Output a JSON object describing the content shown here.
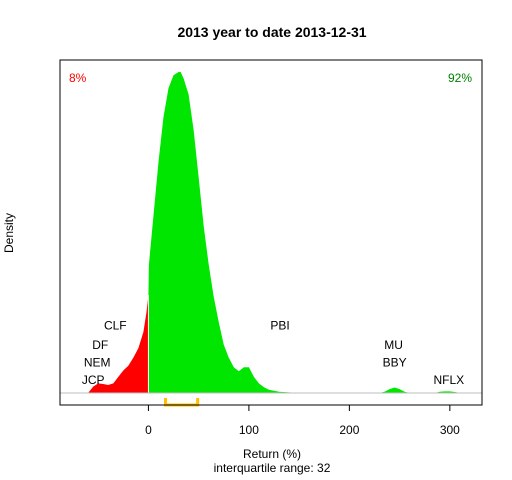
{
  "chart_data": {
    "type": "area",
    "title": "2013  year to date 2013-12-31",
    "xlabel": "Return (%)",
    "ylabel": "Density",
    "subtitle": "interquartile range: 32",
    "xlim": [
      -88,
      332
    ],
    "x_ticks": [
      0,
      100,
      200,
      300
    ],
    "x_tick_labels": [
      "0",
      "100",
      "200",
      "300"
    ],
    "ylim": [
      0,
      1
    ],
    "grid": false,
    "split_at": 0,
    "negative_share_label": "8%",
    "positive_share_label": "92%",
    "colors": {
      "negative": "#ff0000",
      "positive": "#00e600",
      "iqr": "#ffc000",
      "baseline": "#bebebe"
    },
    "interquartile_range": [
      17,
      49
    ],
    "density": {
      "x": [
        -60,
        -55,
        -50,
        -45,
        -40,
        -35,
        -30,
        -25,
        -20,
        -15,
        -10,
        -5,
        -2,
        0,
        0.5,
        5,
        10,
        15,
        20,
        25,
        30,
        32,
        35,
        40,
        45,
        50,
        55,
        60,
        65,
        70,
        75,
        80,
        85,
        90,
        95,
        100,
        105,
        110,
        115,
        120,
        130,
        140,
        150,
        230,
        235,
        240,
        245,
        250,
        255,
        260,
        285,
        290,
        295,
        300,
        305,
        310
      ],
      "y": [
        0,
        0.02,
        0.03,
        0.028,
        0.025,
        0.03,
        0.05,
        0.07,
        0.085,
        0.11,
        0.14,
        0.19,
        0.25,
        0.305,
        0.4,
        0.55,
        0.72,
        0.86,
        0.95,
        0.99,
        1.0,
        1.0,
        0.98,
        0.93,
        0.82,
        0.67,
        0.52,
        0.4,
        0.3,
        0.22,
        0.15,
        0.11,
        0.08,
        0.068,
        0.08,
        0.08,
        0.05,
        0.03,
        0.018,
        0.01,
        0.004,
        0.002,
        0,
        0,
        0.004,
        0.012,
        0.017,
        0.012,
        0.004,
        0,
        0,
        0.004,
        0.005,
        0.005,
        0.003,
        0
      ]
    },
    "annotations": [
      {
        "text": "CLF",
        "x": -33,
        "y": 0.21
      },
      {
        "text": "DF",
        "x": -48,
        "y": 0.15
      },
      {
        "text": "NEM",
        "x": -51,
        "y": 0.095
      },
      {
        "text": "JCP",
        "x": -55,
        "y": 0.04
      },
      {
        "text": "PBI",
        "x": 131,
        "y": 0.21
      },
      {
        "text": "MU",
        "x": 244,
        "y": 0.15
      },
      {
        "text": "BBY",
        "x": 245,
        "y": 0.095
      },
      {
        "text": "NFLX",
        "x": 299,
        "y": 0.04
      }
    ]
  }
}
